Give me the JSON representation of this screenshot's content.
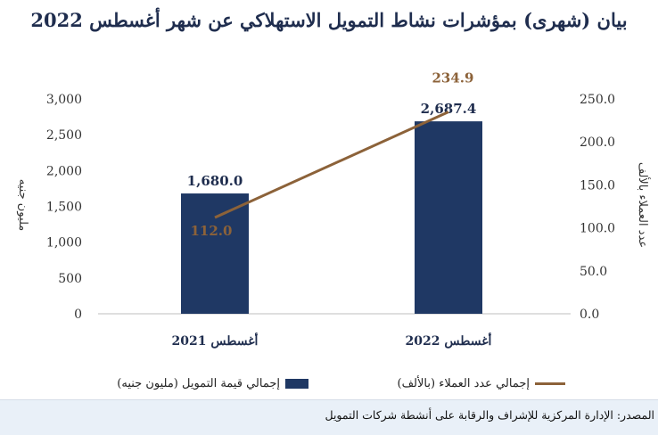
{
  "title": "بيان (شهرى) بمؤشرات نشاط التمويل الاستهلاكي عن شهر أغسطس 2022",
  "source": "المصدر: الإدارة المركزية للإشراف والرقابة على أنشطة شركات التمويل",
  "colors": {
    "bar": "#1f3864",
    "line": "#8c6239",
    "text": "#1f2d4e"
  },
  "chart_data": {
    "type": "bar",
    "categories": [
      "أغسطس 2021",
      "أغسطس 2022"
    ],
    "series": [
      {
        "name": "إجمالي قيمة التمويل (مليون جنيه)",
        "type": "bar",
        "axis": "left",
        "values": [
          1680.0,
          2687.4
        ],
        "labels": [
          "1,680.0",
          "2,687.4"
        ]
      },
      {
        "name": "إجمالي عدد العملاء (بالألف)",
        "type": "line",
        "axis": "right",
        "values": [
          112.0,
          234.9
        ],
        "labels": [
          "112.0",
          "234.9"
        ]
      }
    ],
    "ylabel": "مليون جنيه",
    "y2label": "عدد العملاء بالألف",
    "ylim": [
      0,
      3000
    ],
    "y2lim": [
      0,
      250
    ],
    "yticks": [
      "0",
      "500",
      "1,000",
      "1,500",
      "2,000",
      "2,500",
      "3,000"
    ],
    "y2ticks": [
      "0.0",
      "50.0",
      "100.0",
      "150.0",
      "200.0",
      "250.0"
    ],
    "legend": "bottom",
    "grid": false
  }
}
